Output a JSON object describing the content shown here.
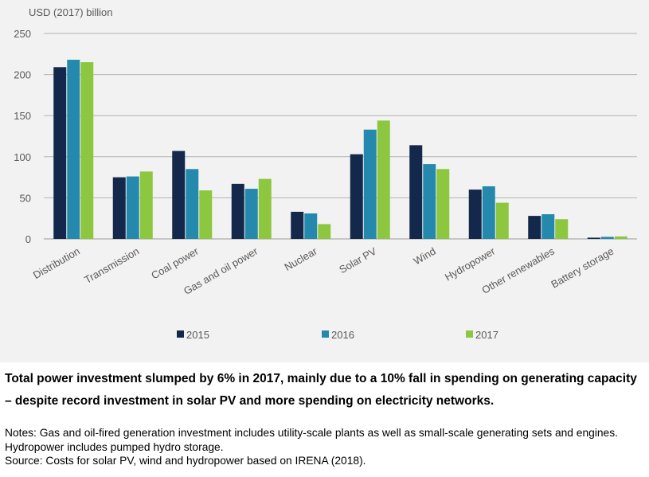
{
  "chart_data": {
    "type": "bar",
    "ylabel": "USD (2017) billion",
    "ylim": [
      0,
      250
    ],
    "yticks": [
      0,
      50,
      100,
      150,
      200,
      250
    ],
    "grid": true,
    "legend_position": "bottom-center",
    "categories": [
      "Distribution",
      "Transmission",
      "Coal power",
      "Gas and oil power",
      "Nuclear",
      "Solar PV",
      "Wind",
      "Hydropower",
      "Other renewables",
      "Battery storage"
    ],
    "series": [
      {
        "name": "2015",
        "color": "#13284a",
        "values": [
          209,
          75,
          107,
          67,
          33,
          103,
          114,
          60,
          28,
          1.5
        ]
      },
      {
        "name": "2016",
        "color": "#2589ad",
        "values": [
          218,
          76,
          85,
          61,
          31,
          133,
          91,
          64,
          30,
          2.5
        ]
      },
      {
        "name": "2017",
        "color": "#8dc63f",
        "values": [
          215,
          82,
          59,
          73,
          18,
          144,
          85,
          44,
          24,
          3
        ]
      }
    ]
  },
  "caption": {
    "headline": "Total power investment slumped by 6% in 2017, mainly due to a 10% fall in spending on generating capacity – despite record investment in solar PV and more spending on electricity networks.",
    "notes": "Notes: Gas and oil-fired generation investment includes utility-scale plants as well as small-scale generating sets and engines. Hydropower includes pumped hydro storage.",
    "source": "Source: Costs for solar PV, wind and hydropower based on IRENA (2018)."
  }
}
